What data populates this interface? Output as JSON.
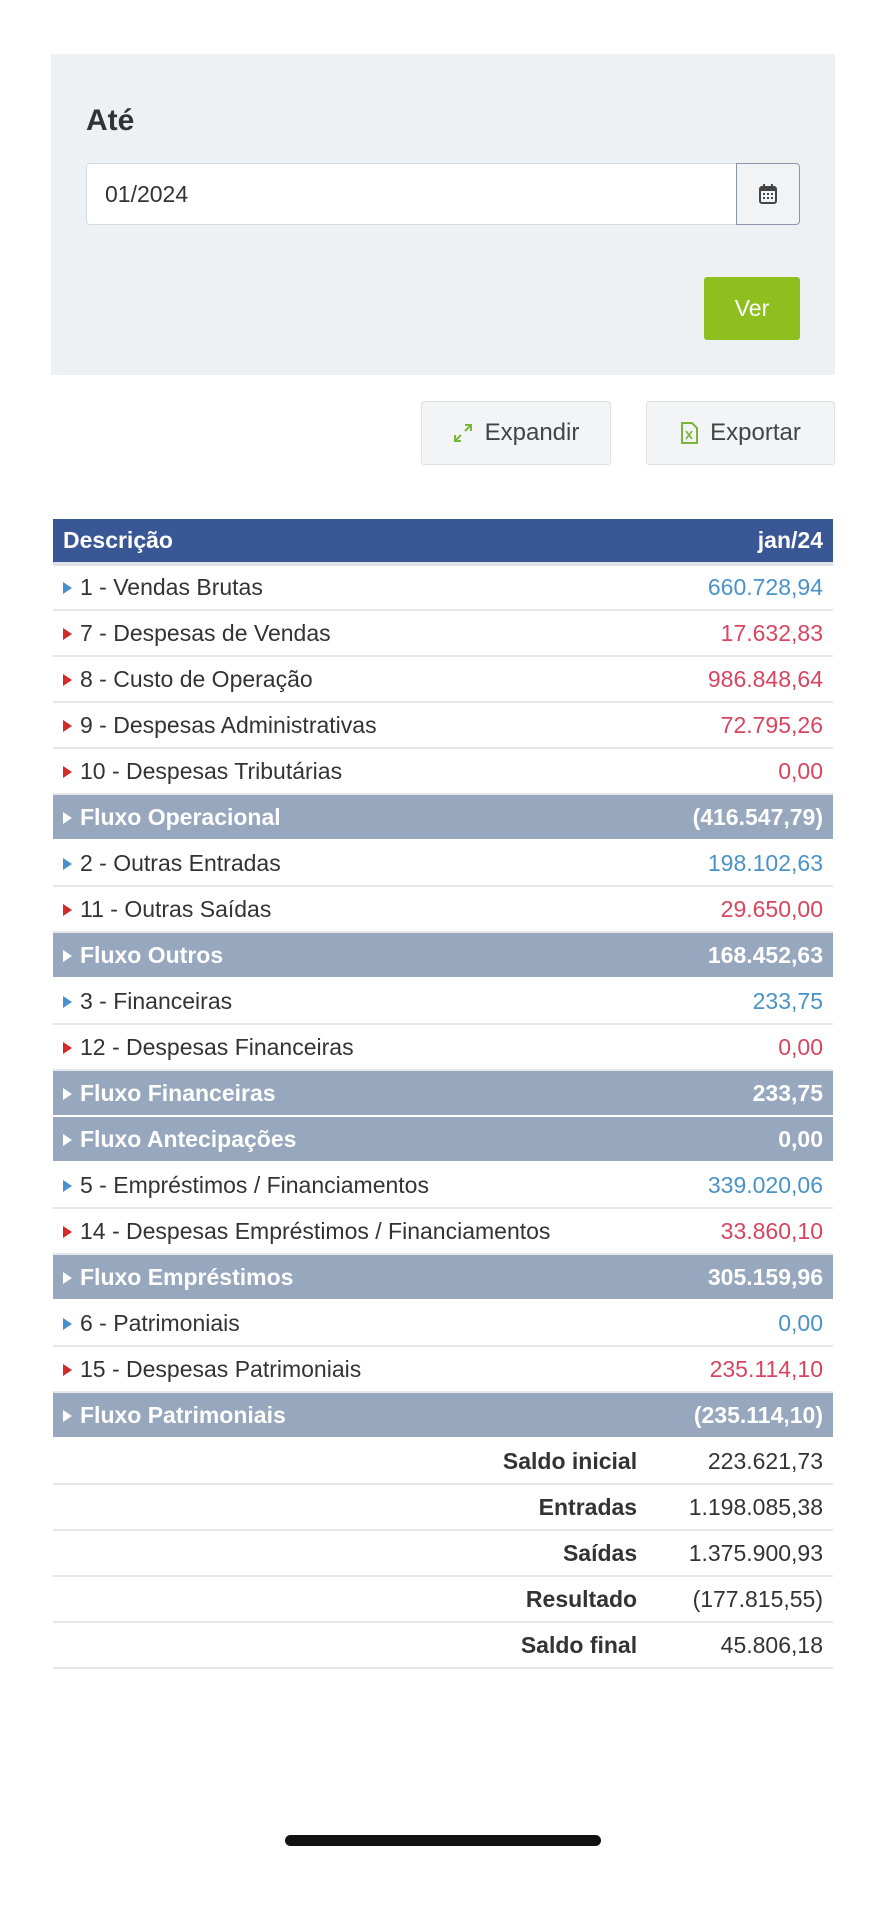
{
  "filter": {
    "label": "Até",
    "value": "01/2024",
    "calendar_icon": "calendar-icon",
    "submit": "Ver"
  },
  "actions": {
    "expand": "Expandir",
    "export": "Exportar"
  },
  "colors": {
    "header": "#3a5795",
    "group": "#97a7be",
    "positive": "#4a92c8",
    "negative": "#d8455f",
    "submit": "#8dc01e"
  },
  "table": {
    "headers": [
      "Descrição",
      "jan/24"
    ],
    "rows": [
      {
        "label": "1 - Vendas Brutas",
        "value": "660.728,94",
        "type": "in"
      },
      {
        "label": "7 - Despesas de Vendas",
        "value": "17.632,83",
        "type": "out"
      },
      {
        "label": "8 - Custo de Operação",
        "value": "986.848,64",
        "type": "out"
      },
      {
        "label": "9 - Despesas Administrativas",
        "value": "72.795,26",
        "type": "out"
      },
      {
        "label": "10 - Despesas Tributárias",
        "value": "0,00",
        "type": "out"
      },
      {
        "label": "Fluxo Operacional",
        "value": "(416.547,79)",
        "type": "flux"
      },
      {
        "label": "2 - Outras Entradas",
        "value": "198.102,63",
        "type": "in"
      },
      {
        "label": "11 - Outras Saídas",
        "value": "29.650,00",
        "type": "out"
      },
      {
        "label": "Fluxo Outros",
        "value": "168.452,63",
        "type": "flux"
      },
      {
        "label": "3 - Financeiras",
        "value": "233,75",
        "type": "in"
      },
      {
        "label": "12 - Despesas Financeiras",
        "value": "0,00",
        "type": "out"
      },
      {
        "label": "Fluxo Financeiras",
        "value": "233,75",
        "type": "flux"
      },
      {
        "label": "Fluxo Antecipações",
        "value": "0,00",
        "type": "flux"
      },
      {
        "label": "5 - Empréstimos / Financiamentos",
        "value": "339.020,06",
        "type": "in"
      },
      {
        "label": "14 - Despesas Empréstimos / Financiamentos",
        "value": "33.860,10",
        "type": "out"
      },
      {
        "label": "Fluxo Empréstimos",
        "value": "305.159,96",
        "type": "flux"
      },
      {
        "label": "6 - Patrimoniais",
        "value": "0,00",
        "type": "in"
      },
      {
        "label": "15 - Despesas Patrimoniais",
        "value": "235.114,10",
        "type": "out"
      },
      {
        "label": "Fluxo Patrimoniais",
        "value": "(235.114,10)",
        "type": "flux"
      }
    ],
    "summary": [
      {
        "label": "Saldo inicial",
        "value": "223.621,73"
      },
      {
        "label": "Entradas",
        "value": "1.198.085,38"
      },
      {
        "label": "Saídas",
        "value": "1.375.900,93"
      },
      {
        "label": "Resultado",
        "value": "(177.815,55)"
      },
      {
        "label": "Saldo final",
        "value": "45.806,18"
      }
    ]
  }
}
